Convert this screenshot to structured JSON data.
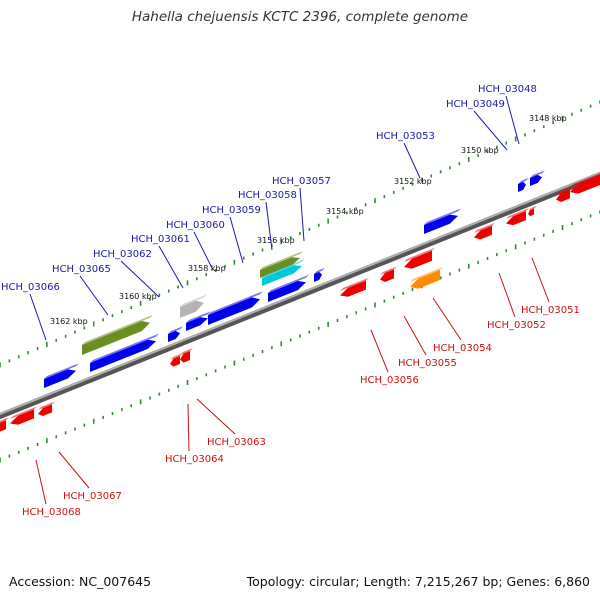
{
  "title": "Hahella chejuensis KCTC 2396, complete genome",
  "footer": {
    "accession": "Accession: NC_007645",
    "info": "Topology: circular; Length: 7,215,267 bp; Genes: 6,860"
  },
  "colors": {
    "forward_label": "#1a1aa8",
    "reverse_label": "#cc1111",
    "backbone": "#808080",
    "ticks": "#2e8b2e",
    "red": "#ee0000",
    "blue": "#0000ee",
    "olive": "#6b8e23",
    "cyan": "#00c8d8",
    "gray": "#b4b4b4",
    "orange": "#ff8c00"
  },
  "scale_labels": [
    "3148 kbp",
    "3150 kbp",
    "3152 kbp",
    "3154 kbp",
    "3156 kbp",
    "3158 kbp",
    "3160 kbp",
    "3162 kbp"
  ],
  "forward_gene_labels": [
    "HCH_03048",
    "HCH_03049",
    "HCH_03053",
    "HCH_03057",
    "HCH_03058",
    "HCH_03059",
    "HCH_03060",
    "HCH_03061",
    "HCH_03062",
    "HCH_03065",
    "HCH_03066"
  ],
  "reverse_gene_labels": [
    "HCH_03051",
    "HCH_03052",
    "HCH_03054",
    "HCH_03055",
    "HCH_03056",
    "HCH_03063",
    "HCH_03064",
    "HCH_03067",
    "HCH_03068"
  ]
}
